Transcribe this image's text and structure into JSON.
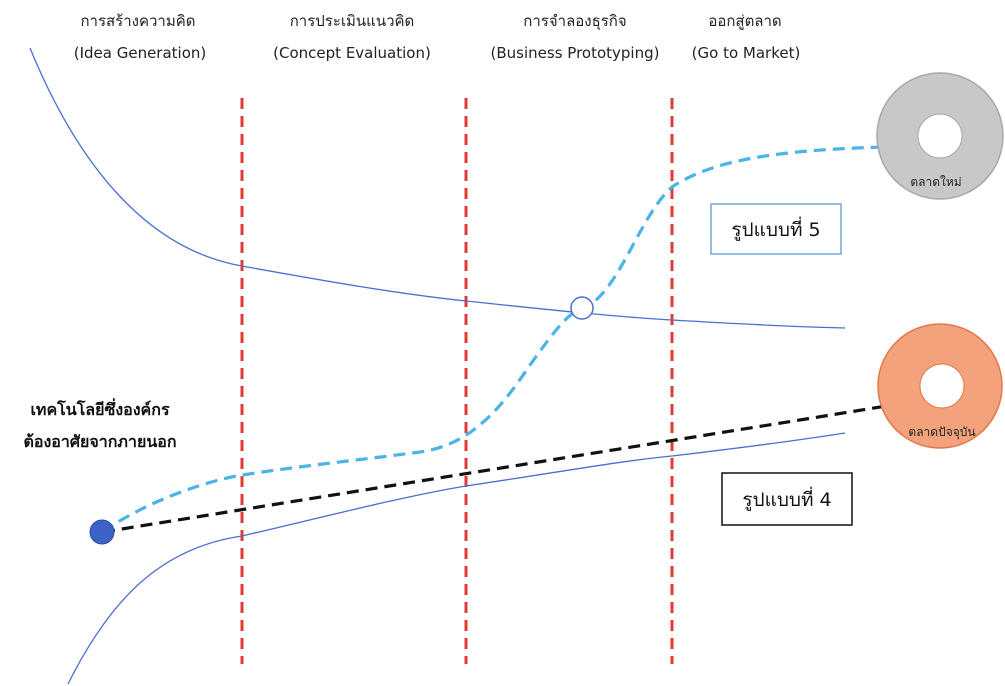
{
  "stages": [
    {
      "name_th": "การสร้างความคิด",
      "name_en": "(Idea Generation)"
    },
    {
      "name_th": "การประเมินแนวคิด",
      "name_en": "(Concept Evaluation)"
    },
    {
      "name_th": "การจำลองธุรกิจ",
      "name_en": "(Business Prototyping)"
    },
    {
      "name_th": "ออกสู่ตลาด",
      "name_en": "(Go to Market)"
    }
  ],
  "source": {
    "line1": "เทคโนโลยีซึ่งองค์กร",
    "line2": "ต้องอาศัยจากภายนอก"
  },
  "models": {
    "model5": "รูปแบบที่ 5",
    "model4": "รูปแบบที่ 4"
  },
  "markets": {
    "new_market": "ตลาดใหม่",
    "current_market": "ตลาดปัจจุบัน"
  },
  "colors": {
    "stage_divider": "#e53935",
    "funnel_curve": "#4a6fd1",
    "model5_path": "#4ab3e8",
    "model4_path": "#111111",
    "source_dot": "#3d63c9",
    "new_market": "#c8c8c8",
    "current_market": "#f4a27c",
    "model5_box_border": "#6fa8dc",
    "model4_box_border": "#111111"
  }
}
